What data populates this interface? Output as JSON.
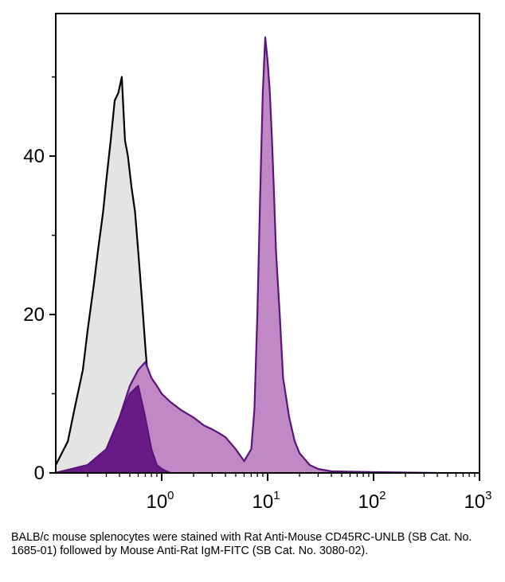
{
  "caption": "BALB/c mouse splenocytes were stained with Rat Anti-Mouse CD45RC-UNLB (SB Cat. No. 1685-01) followed by Mouse Anti-Rat IgM-FITC (SB Cat. No. 3080-02).",
  "chart_data": {
    "type": "area",
    "title": "",
    "xlabel": "",
    "ylabel": "",
    "xscale": "log",
    "xlim": [
      0.1,
      1000
    ],
    "ylim": [
      0,
      58
    ],
    "x_ticks": [
      {
        "base": "10",
        "exp": "0",
        "value": 1
      },
      {
        "base": "10",
        "exp": "1",
        "value": 10
      },
      {
        "base": "10",
        "exp": "2",
        "value": 100
      },
      {
        "base": "10",
        "exp": "3",
        "value": 1000
      }
    ],
    "y_ticks": [
      0,
      20,
      40
    ],
    "grid": false,
    "legend": "none",
    "series": [
      {
        "fill": "#e4e4e4",
        "stroke": "#000000",
        "x": [
          0.1,
          0.13,
          0.15,
          0.18,
          0.2,
          0.23,
          0.25,
          0.28,
          0.3,
          0.33,
          0.36,
          0.39,
          0.42,
          0.45,
          0.48,
          0.52,
          0.56,
          0.6,
          0.65,
          0.7,
          0.76,
          0.82,
          0.9,
          1.0,
          1.2,
          1.5
        ],
        "y": [
          1,
          4,
          8,
          13,
          18,
          24,
          28,
          33,
          37,
          42,
          47,
          48,
          50,
          42,
          40,
          36,
          33,
          28,
          22,
          16,
          10,
          6,
          3,
          1.5,
          0.5,
          0
        ]
      },
      {
        "fill": "#c088c4",
        "stroke": "#5a147a",
        "x": [
          0.1,
          0.2,
          0.3,
          0.4,
          0.5,
          0.6,
          0.7,
          0.8,
          0.9,
          1.0,
          1.2,
          1.5,
          2.0,
          2.5,
          3.0,
          3.5,
          4.0,
          5.0,
          6.0,
          7.0,
          7.5,
          8.0,
          8.5,
          9.0,
          9.5,
          10.0,
          10.5,
          11.0,
          11.5,
          12.0,
          13.0,
          14.0,
          16.0,
          18.0,
          20.0,
          25.0,
          30.0,
          40.0,
          100.0,
          400.0
        ],
        "y": [
          0,
          1,
          3,
          7,
          11,
          13,
          14,
          12,
          11,
          10,
          9,
          8,
          7,
          6,
          5.5,
          5,
          4.5,
          3,
          1.5,
          3,
          8,
          20,
          35,
          48,
          55,
          52,
          48,
          42,
          35,
          28,
          20,
          12,
          7,
          4,
          2.5,
          1,
          0.5,
          0.2,
          0.1,
          0
        ]
      },
      {
        "fill": "#6a1a86",
        "stroke": "#5a147a",
        "x": [
          0.1,
          0.2,
          0.3,
          0.4,
          0.5,
          0.6,
          0.7,
          0.8,
          0.9,
          1.0,
          1.2
        ],
        "y": [
          0,
          1,
          3,
          7,
          10,
          11,
          7,
          3,
          1,
          0.5,
          0
        ]
      }
    ]
  }
}
